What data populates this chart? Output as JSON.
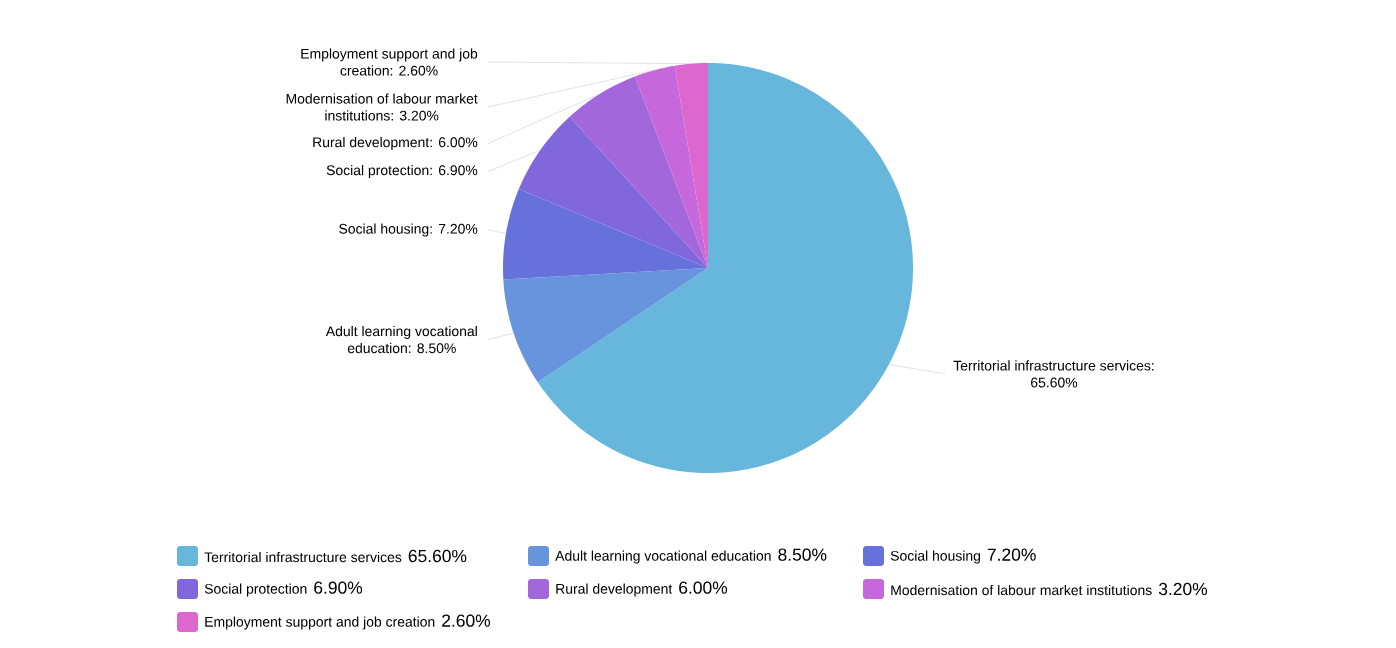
{
  "chart_data": {
    "type": "pie",
    "categories": [
      "Territorial infrastructure services",
      "Adult learning vocational education",
      "Social housing",
      "Social protection",
      "Rural development",
      "Modernisation of labour market institutions",
      "Employment support and job creation"
    ],
    "values": [
      65.6,
      8.5,
      7.2,
      6.9,
      6.0,
      3.2,
      2.6
    ],
    "value_labels": [
      "65.60%",
      "8.50%",
      "7.20%",
      "6.90%",
      "6.00%",
      "3.20%",
      "2.60%"
    ],
    "colors": [
      "#67b7dc",
      "#6794dc",
      "#6771dc",
      "#8067dc",
      "#a367dc",
      "#c767dc",
      "#dc67ce"
    ],
    "annotations": [
      "Territorial infrastructure services: 65.60%",
      "Adult learning vocational education: 8.50%",
      "Social housing: 7.20%",
      "Social protection: 6.90%",
      "Rural development: 6.00%",
      "Modernisation of labour market institutions: 3.20%",
      "Employment support and job creation: 2.60%"
    ],
    "legend": "bottom"
  }
}
